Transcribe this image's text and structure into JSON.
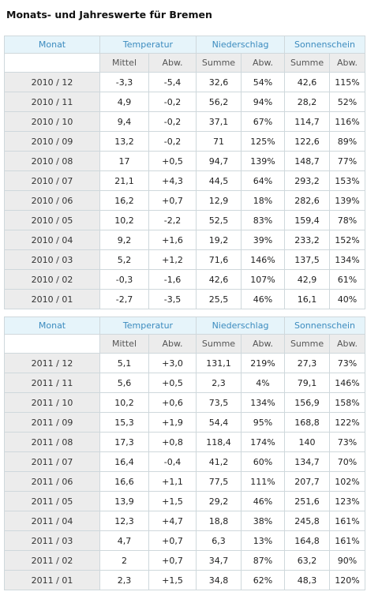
{
  "page": {
    "title": "Monats- und Jahreswerte für Bremen"
  },
  "headers": {
    "monat": "Monat",
    "temperatur": "Temperatur",
    "niederschlag": "Niederschlag",
    "sonnenschein": "Sonnenschein",
    "mittel": "Mittel",
    "abw": "Abw.",
    "summe": "Summe"
  },
  "colors": {
    "temp_below": "#2424a0",
    "temp_above": "#c0151b",
    "precip_wet": "#2b9e2b",
    "precip_normal": "#b02ab9",
    "sun_above": "#c0151b",
    "sun_normal": "#555555",
    "header_text": "#3b8bbf",
    "header_bg": "#e6f4fa"
  },
  "tables": [
    {
      "rows": [
        {
          "monat": "2010 / 12",
          "t_mittel": "-3,3",
          "t_abw": "-5,4",
          "n_summe": "32,6",
          "n_abw": "54%",
          "s_summe": "42,6",
          "s_abw": "115%"
        },
        {
          "monat": "2010 / 11",
          "t_mittel": "4,9",
          "t_abw": "-0,2",
          "n_summe": "56,2",
          "n_abw": "94%",
          "s_summe": "28,2",
          "s_abw": "52%"
        },
        {
          "monat": "2010 / 10",
          "t_mittel": "9,4",
          "t_abw": "-0,2",
          "n_summe": "37,1",
          "n_abw": "67%",
          "s_summe": "114,7",
          "s_abw": "116%"
        },
        {
          "monat": "2010 / 09",
          "t_mittel": "13,2",
          "t_abw": "-0,2",
          "n_summe": "71",
          "n_abw": "125%",
          "s_summe": "122,6",
          "s_abw": "89%"
        },
        {
          "monat": "2010 / 08",
          "t_mittel": "17",
          "t_abw": "+0,5",
          "n_summe": "94,7",
          "n_abw": "139%",
          "s_summe": "148,7",
          "s_abw": "77%"
        },
        {
          "monat": "2010 / 07",
          "t_mittel": "21,1",
          "t_abw": "+4,3",
          "n_summe": "44,5",
          "n_abw": "64%",
          "s_summe": "293,2",
          "s_abw": "153%"
        },
        {
          "monat": "2010 / 06",
          "t_mittel": "16,2",
          "t_abw": "+0,7",
          "n_summe": "12,9",
          "n_abw": "18%",
          "s_summe": "282,6",
          "s_abw": "139%"
        },
        {
          "monat": "2010 / 05",
          "t_mittel": "10,2",
          "t_abw": "-2,2",
          "n_summe": "52,5",
          "n_abw": "83%",
          "s_summe": "159,4",
          "s_abw": "78%"
        },
        {
          "monat": "2010 / 04",
          "t_mittel": "9,2",
          "t_abw": "+1,6",
          "n_summe": "19,2",
          "n_abw": "39%",
          "s_summe": "233,2",
          "s_abw": "152%"
        },
        {
          "monat": "2010 / 03",
          "t_mittel": "5,2",
          "t_abw": "+1,2",
          "n_summe": "71,6",
          "n_abw": "146%",
          "s_summe": "137,5",
          "s_abw": "134%"
        },
        {
          "monat": "2010 / 02",
          "t_mittel": "-0,3",
          "t_abw": "-1,6",
          "n_summe": "42,6",
          "n_abw": "107%",
          "s_summe": "42,9",
          "s_abw": "61%"
        },
        {
          "monat": "2010 / 01",
          "t_mittel": "-2,7",
          "t_abw": "-3,5",
          "n_summe": "25,5",
          "n_abw": "46%",
          "s_summe": "16,1",
          "s_abw": "40%"
        }
      ]
    },
    {
      "rows": [
        {
          "monat": "2011 / 12",
          "t_mittel": "5,1",
          "t_abw": "+3,0",
          "n_summe": "131,1",
          "n_abw": "219%",
          "s_summe": "27,3",
          "s_abw": "73%"
        },
        {
          "monat": "2011 / 11",
          "t_mittel": "5,6",
          "t_abw": "+0,5",
          "n_summe": "2,3",
          "n_abw": "4%",
          "s_summe": "79,1",
          "s_abw": "146%"
        },
        {
          "monat": "2011 / 10",
          "t_mittel": "10,2",
          "t_abw": "+0,6",
          "n_summe": "73,5",
          "n_abw": "134%",
          "s_summe": "156,9",
          "s_abw": "158%"
        },
        {
          "monat": "2011 / 09",
          "t_mittel": "15,3",
          "t_abw": "+1,9",
          "n_summe": "54,4",
          "n_abw": "95%",
          "s_summe": "168,8",
          "s_abw": "122%"
        },
        {
          "monat": "2011 / 08",
          "t_mittel": "17,3",
          "t_abw": "+0,8",
          "n_summe": "118,4",
          "n_abw": "174%",
          "s_summe": "140",
          "s_abw": "73%"
        },
        {
          "monat": "2011 / 07",
          "t_mittel": "16,4",
          "t_abw": "-0,4",
          "n_summe": "41,2",
          "n_abw": "60%",
          "s_summe": "134,7",
          "s_abw": "70%"
        },
        {
          "monat": "2011 / 06",
          "t_mittel": "16,6",
          "t_abw": "+1,1",
          "n_summe": "77,5",
          "n_abw": "111%",
          "s_summe": "207,7",
          "s_abw": "102%"
        },
        {
          "monat": "2011 / 05",
          "t_mittel": "13,9",
          "t_abw": "+1,5",
          "n_summe": "29,2",
          "n_abw": "46%",
          "s_summe": "251,6",
          "s_abw": "123%"
        },
        {
          "monat": "2011 / 04",
          "t_mittel": "12,3",
          "t_abw": "+4,7",
          "n_summe": "18,8",
          "n_abw": "38%",
          "s_summe": "245,8",
          "s_abw": "161%"
        },
        {
          "monat": "2011 / 03",
          "t_mittel": "4,7",
          "t_abw": "+0,7",
          "n_summe": "6,3",
          "n_abw": "13%",
          "s_summe": "164,8",
          "s_abw": "161%"
        },
        {
          "monat": "2011 / 02",
          "t_mittel": "2",
          "t_abw": "+0,7",
          "n_summe": "34,7",
          "n_abw": "87%",
          "s_summe": "63,2",
          "s_abw": "90%"
        },
        {
          "monat": "2011 / 01",
          "t_mittel": "2,3",
          "t_abw": "+1,5",
          "n_summe": "34,8",
          "n_abw": "62%",
          "s_summe": "48,3",
          "s_abw": "120%"
        }
      ]
    }
  ]
}
